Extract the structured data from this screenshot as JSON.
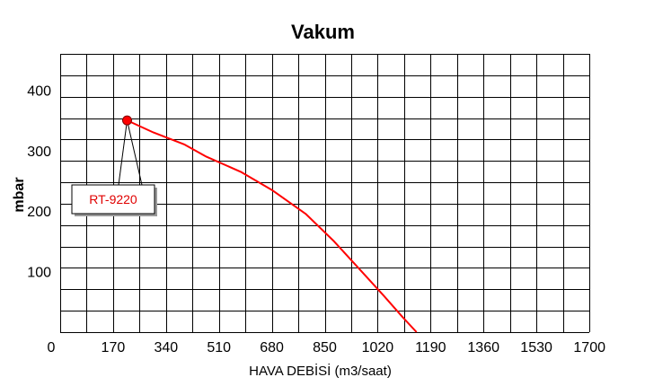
{
  "chart_data": {
    "type": "line",
    "title": "Vakum",
    "xlabel": "HAVA DEBİSİ (m3/saat)",
    "ylabel": "mbar",
    "xlim": [
      0,
      1700
    ],
    "ylim": [
      0,
      460
    ],
    "x_ticks": [
      0,
      170,
      340,
      510,
      680,
      850,
      1020,
      1190,
      1360,
      1530,
      1700
    ],
    "y_ticks": [
      100,
      200,
      300,
      400
    ],
    "grid": true,
    "series": [
      {
        "name": "",
        "color": "#ff0000",
        "x": [
          215,
          300,
          400,
          470,
          580,
          680,
          790,
          880,
          960,
          1040,
          1100,
          1145
        ],
        "y": [
          350,
          330,
          310,
          290,
          265,
          235,
          195,
          150,
          105,
          60,
          25,
          0
        ]
      }
    ],
    "annotations": [
      {
        "text": "RT-9220",
        "x": 215,
        "y": 350,
        "color": "#e00000"
      }
    ]
  }
}
